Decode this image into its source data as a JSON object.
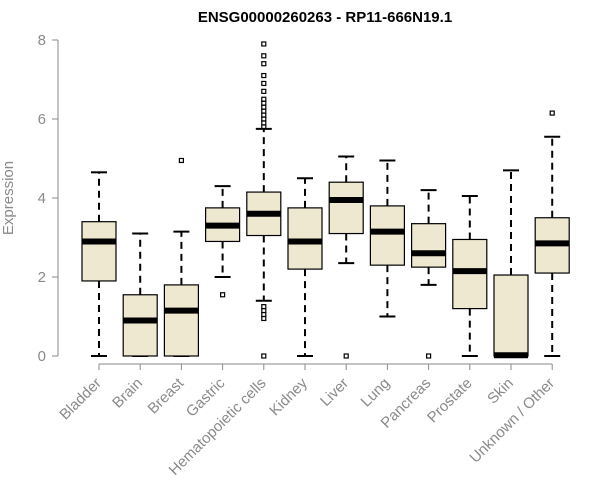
{
  "chart_data": {
    "type": "boxplot",
    "title": "ENSG00000260263 - RP11-666N19.1",
    "xlabel": "",
    "ylabel": "Expression",
    "ylim": [
      0,
      8
    ],
    "yticks": [
      0,
      2,
      4,
      6,
      8
    ],
    "colors": {
      "box_fill": "#efe8d0",
      "axis": "#8a8a8a",
      "ink": "#000000"
    },
    "categories": [
      "Bladder",
      "Brain",
      "Breast",
      "Gastric",
      "Hematopoietic cells",
      "Kidney",
      "Liver",
      "Lung",
      "Pancreas",
      "Prostate",
      "Skin",
      "Unknown / Other"
    ],
    "boxes": [
      {
        "category": "Bladder",
        "min": 0,
        "q1": 1.9,
        "median": 2.9,
        "q3": 3.4,
        "max": 4.65,
        "outliers": []
      },
      {
        "category": "Brain",
        "min": 0,
        "q1": 0,
        "median": 0.9,
        "q3": 1.55,
        "max": 3.1,
        "outliers": []
      },
      {
        "category": "Breast",
        "min": 0,
        "q1": 0,
        "median": 1.15,
        "q3": 1.8,
        "max": 3.15,
        "outliers": [
          4.95
        ]
      },
      {
        "category": "Gastric",
        "min": 2.0,
        "q1": 2.9,
        "median": 3.3,
        "q3": 3.75,
        "max": 4.3,
        "outliers": [
          1.55
        ]
      },
      {
        "category": "Hematopoietic cells",
        "min": 1.4,
        "q1": 3.05,
        "median": 3.6,
        "q3": 4.15,
        "max": 5.75,
        "outliers": [
          0,
          0.95,
          1.05,
          1.15,
          1.25,
          5.8,
          5.9,
          6.0,
          6.1,
          6.2,
          6.3,
          6.4,
          6.5,
          6.7,
          6.9,
          7.1,
          7.4,
          7.6,
          7.9
        ]
      },
      {
        "category": "Kidney",
        "min": 0,
        "q1": 2.2,
        "median": 2.9,
        "q3": 3.75,
        "max": 4.5,
        "outliers": []
      },
      {
        "category": "Liver",
        "min": 2.35,
        "q1": 3.1,
        "median": 3.95,
        "q3": 4.4,
        "max": 5.05,
        "outliers": [
          0
        ]
      },
      {
        "category": "Lung",
        "min": 1.0,
        "q1": 2.3,
        "median": 3.15,
        "q3": 3.8,
        "max": 4.95,
        "outliers": []
      },
      {
        "category": "Pancreas",
        "min": 1.8,
        "q1": 2.25,
        "median": 2.6,
        "q3": 3.35,
        "max": 4.2,
        "outliers": [
          0
        ]
      },
      {
        "category": "Prostate",
        "min": 0,
        "q1": 1.2,
        "median": 2.15,
        "q3": 2.95,
        "max": 4.05,
        "outliers": []
      },
      {
        "category": "Skin",
        "min": 0,
        "q1": 0,
        "median": 0.02,
        "q3": 2.05,
        "max": 4.7,
        "outliers": []
      },
      {
        "category": "Unknown / Other",
        "min": 0,
        "q1": 2.1,
        "median": 2.85,
        "q3": 3.5,
        "max": 5.55,
        "outliers": [
          6.15
        ]
      }
    ]
  }
}
